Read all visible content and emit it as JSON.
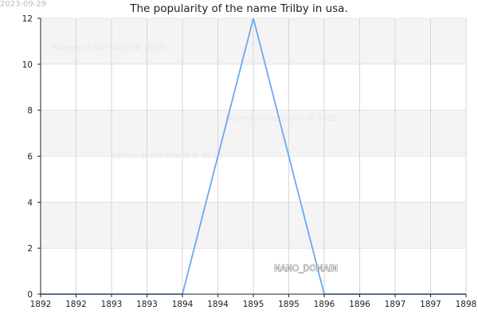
{
  "date_stamp": "2023-09-29",
  "domain_label": "NANO_DOMAIN",
  "watermarks": [
    "Names of the World © 2023",
    "Names of the World © 2023",
    "Names of the World © 2023"
  ],
  "colors": {
    "line": "#6aaaf0",
    "band": "#f4f4f4",
    "grid": "#d6d6d6",
    "axis": "#222222"
  },
  "chart_data": {
    "type": "line",
    "title": "The popularity of the name Trilby in usa.",
    "xlabel": "",
    "ylabel": "",
    "x_tick_labels": [
      "1892",
      "1892",
      "1893",
      "1893",
      "1894",
      "1894",
      "1895",
      "1895",
      "1896",
      "1896",
      "1897",
      "1897",
      "1898"
    ],
    "xlim": [
      1892,
      1898
    ],
    "ylim": [
      0,
      12
    ],
    "y_ticks": [
      0,
      2,
      4,
      6,
      8,
      10,
      12
    ],
    "grid": true,
    "series": [
      {
        "x": [
          1892,
          1893,
          1894,
          1895,
          1896,
          1897,
          1898
        ],
        "y": [
          0,
          0,
          0,
          12,
          0,
          0,
          0
        ]
      }
    ]
  }
}
